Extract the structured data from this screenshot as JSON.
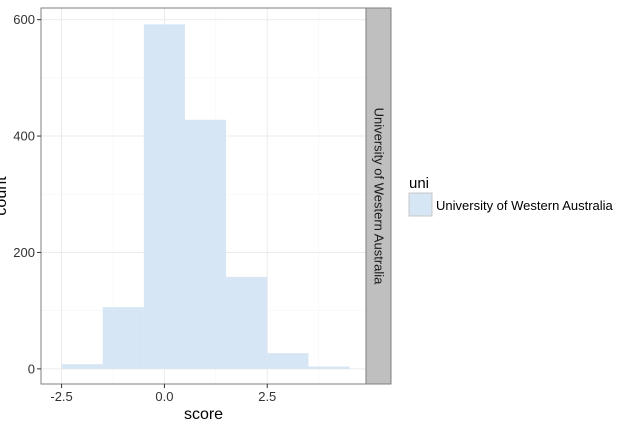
{
  "chart_data": {
    "type": "bar",
    "subtype": "histogram",
    "xlabel": "score",
    "ylabel": "count",
    "facet_label": "University of Western Australia",
    "bin_width": 1,
    "bins": [
      {
        "x_start": -2.5,
        "x_end": -1.5,
        "count": 8
      },
      {
        "x_start": -1.5,
        "x_end": -0.5,
        "count": 106
      },
      {
        "x_start": -0.5,
        "x_end": 0.5,
        "count": 592
      },
      {
        "x_start": 0.5,
        "x_end": 1.5,
        "count": 428
      },
      {
        "x_start": 1.5,
        "x_end": 2.5,
        "count": 158
      },
      {
        "x_start": 2.5,
        "x_end": 3.5,
        "count": 27
      },
      {
        "x_start": 3.5,
        "x_end": 4.5,
        "count": 4
      }
    ],
    "xlim": [
      -3.0,
      4.9
    ],
    "ylim": [
      -26,
      620
    ],
    "x_ticks": [
      -2.5,
      0.0,
      2.5
    ],
    "x_tick_labels": [
      "-2.5",
      "0.0",
      "2.5"
    ],
    "y_ticks": [
      0,
      200,
      400,
      600
    ],
    "y_tick_labels": [
      "0",
      "200",
      "400",
      "600"
    ],
    "grid": true,
    "legend": {
      "title": "uni",
      "position": "right",
      "items": [
        {
          "label": "University of Western Australia",
          "color": "#d6e6f4"
        }
      ]
    },
    "colors": {
      "fill": "#d6e6f4",
      "strip_background": "#bfbfbf",
      "grid_major": "#ebebeb",
      "grid_minor": "#f5f5f5",
      "panel_border": "#7f7f7f"
    }
  }
}
